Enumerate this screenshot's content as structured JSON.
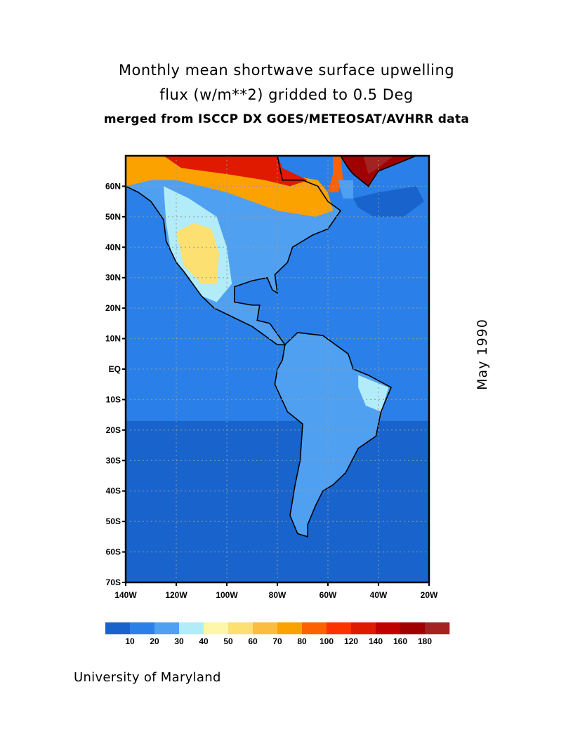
{
  "title": {
    "line1": "Monthly mean shortwave surface upwelling",
    "line2": "flux (w/m**2) gridded to 0.5 Deg",
    "line3": "merged from ISCCP DX GOES/METEOSAT/AVHRR data"
  },
  "date_label": "May 1990",
  "footer": "University of Maryland",
  "map": {
    "lon_range": [
      -140,
      -20
    ],
    "lat_range": [
      -70,
      70
    ],
    "lat_ticks": [
      {
        "v": 60,
        "t": "60N"
      },
      {
        "v": 50,
        "t": "50N"
      },
      {
        "v": 40,
        "t": "40N"
      },
      {
        "v": 30,
        "t": "30N"
      },
      {
        "v": 20,
        "t": "20N"
      },
      {
        "v": 10,
        "t": "10N"
      },
      {
        "v": 0,
        "t": "EQ"
      },
      {
        "v": -10,
        "t": "10S"
      },
      {
        "v": -20,
        "t": "20S"
      },
      {
        "v": -30,
        "t": "30S"
      },
      {
        "v": -40,
        "t": "40S"
      },
      {
        "v": -50,
        "t": "50S"
      },
      {
        "v": -60,
        "t": "60S"
      },
      {
        "v": -70,
        "t": "70S"
      }
    ],
    "lon_ticks": [
      {
        "v": -140,
        "t": "140W"
      },
      {
        "v": -120,
        "t": "120W"
      },
      {
        "v": -100,
        "t": "100W"
      },
      {
        "v": -80,
        "t": "80W"
      },
      {
        "v": -60,
        "t": "60W"
      },
      {
        "v": -40,
        "t": "40W"
      },
      {
        "v": -20,
        "t": "20W"
      }
    ]
  },
  "colorbar": {
    "colors": [
      "#1864cc",
      "#2a80e8",
      "#50a0f2",
      "#b2ecf8",
      "#fef6a8",
      "#fde072",
      "#fcbc40",
      "#fca200",
      "#fc6200",
      "#fc3200",
      "#e01a00",
      "#c00000",
      "#a00000",
      "#a42222"
    ],
    "labels": [
      "10",
      "20",
      "30",
      "40",
      "50",
      "60",
      "70",
      "80",
      "100",
      "120",
      "140",
      "160",
      "180"
    ]
  }
}
